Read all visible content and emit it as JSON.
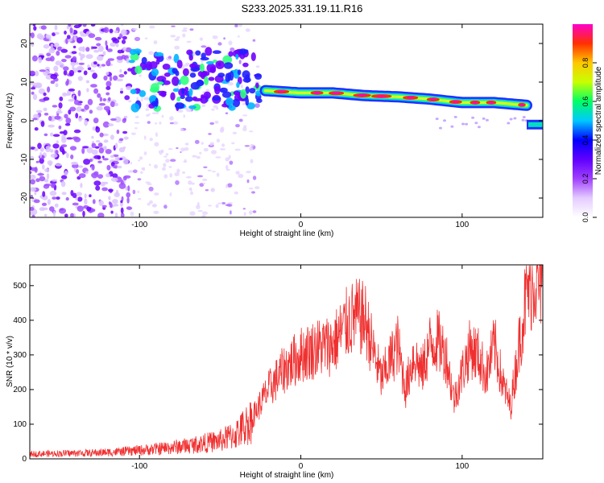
{
  "title": "S233.2025.331.19.11.R16",
  "chart_data": [
    {
      "type": "heatmap",
      "name": "spectrogram",
      "xlabel": "Height of straight line (km)",
      "ylabel": "Frequency (Hz)",
      "xlim": [
        -168,
        150
      ],
      "ylim": [
        -25,
        25
      ],
      "xticks": [
        -100,
        0,
        100
      ],
      "xtick_labels": [
        "-100",
        "0",
        "100"
      ],
      "yticks": [
        -20,
        -10,
        0,
        10,
        20
      ],
      "ytick_labels": [
        "-20",
        "-10",
        "0",
        "10",
        "20"
      ],
      "colorbar": {
        "label": "Normalized spectral amplitude",
        "range": [
          0.0,
          1.0
        ],
        "ticks": [
          0.0,
          0.2,
          0.4,
          0.6,
          0.8
        ],
        "tick_labels": [
          "0.0",
          "0.2",
          "0.4",
          "0.6",
          "0.8"
        ],
        "colormap": [
          "#ffffff",
          "#e4ccff",
          "#a040ff",
          "#6000ff",
          "#0000ff",
          "#00c8ff",
          "#00ff66",
          "#c8ff00",
          "#ffc800",
          "#ff3000",
          "#ff00cc"
        ]
      },
      "ridge_frequency_hz": [
        {
          "height_km": -22,
          "freq_hz": 7.8
        },
        {
          "height_km": 0,
          "freq_hz": 7.2
        },
        {
          "height_km": 20,
          "freq_hz": 7.2
        },
        {
          "height_km": 40,
          "freq_hz": 6.5
        },
        {
          "height_km": 60,
          "freq_hz": 6.2
        },
        {
          "height_km": 80,
          "freq_hz": 5.6
        },
        {
          "height_km": 100,
          "freq_hz": 4.7
        },
        {
          "height_km": 120,
          "freq_hz": 4.7
        },
        {
          "height_km": 140,
          "freq_hz": 4.0
        }
      ]
    },
    {
      "type": "line",
      "name": "snr",
      "xlabel": "Height of straight line (km)",
      "ylabel": "SNR (10 * v/v)",
      "xlim": [
        -168,
        150
      ],
      "ylim": [
        0,
        560
      ],
      "xticks": [
        -100,
        0,
        100
      ],
      "xtick_labels": [
        "-100",
        "0",
        "100"
      ],
      "yticks": [
        0,
        100,
        200,
        300,
        400,
        500
      ],
      "ytick_labels": [
        "0",
        "100",
        "200",
        "300",
        "400",
        "500"
      ],
      "color": "#f03030",
      "envelope": {
        "x": [
          -168,
          -130,
          -110,
          -90,
          -70,
          -50,
          -40,
          -30,
          -25,
          -20,
          -10,
          0,
          10,
          20,
          30,
          35,
          40,
          45,
          50,
          55,
          60,
          65,
          70,
          75,
          80,
          85,
          90,
          95,
          100,
          105,
          110,
          115,
          120,
          125,
          130,
          135,
          140,
          145,
          150
        ],
        "y": [
          15,
          18,
          22,
          30,
          40,
          55,
          75,
          120,
          160,
          200,
          260,
          300,
          320,
          330,
          400,
          410,
          400,
          310,
          230,
          280,
          330,
          200,
          300,
          250,
          330,
          340,
          300,
          170,
          250,
          320,
          300,
          240,
          330,
          220,
          150,
          320,
          480,
          520,
          500
        ]
      }
    }
  ]
}
